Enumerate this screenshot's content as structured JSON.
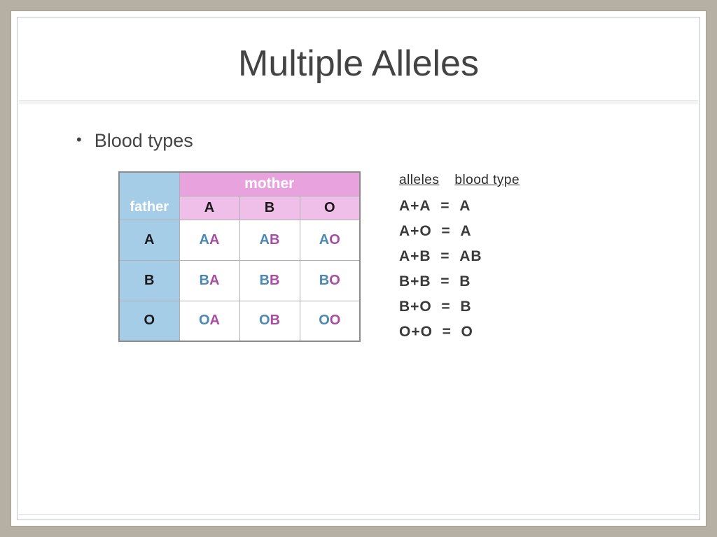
{
  "title": "Multiple Alleles",
  "bullet": "Blood types",
  "colors": {
    "page_bg": "#b5afa4",
    "slide_bg": "#ffffff",
    "inner_border": "#b8c5d8",
    "title_color": "#434343",
    "father_bg": "#a6cde8",
    "mother_header_bg": "#e8a2dd",
    "mother_sub_bg": "#efbfe9",
    "father_letter": "#4b88b2",
    "mother_letter": "#a84da2",
    "cell_border": "#b0b0b0",
    "table_border": "#8c8c8c",
    "text_dark": "#1a1a1a"
  },
  "punnett": {
    "father_label": "father",
    "mother_label": "mother",
    "mother_cols": [
      "A",
      "B",
      "O"
    ],
    "father_rows": [
      "A",
      "B",
      "O"
    ],
    "cells": [
      [
        [
          "A",
          "A"
        ],
        [
          "A",
          "B"
        ],
        [
          "A",
          "O"
        ]
      ],
      [
        [
          "B",
          "A"
        ],
        [
          "B",
          "B"
        ],
        [
          "B",
          "O"
        ]
      ],
      [
        [
          "O",
          "A"
        ],
        [
          "O",
          "B"
        ],
        [
          "O",
          "O"
        ]
      ]
    ]
  },
  "key": {
    "header_alleles": "alleles",
    "header_bloodtype": "blood type",
    "rows": [
      {
        "lhs": "A+A",
        "rhs": "A"
      },
      {
        "lhs": "A+O",
        "rhs": "A"
      },
      {
        "lhs": "A+B",
        "rhs": "AB"
      },
      {
        "lhs": "B+B",
        "rhs": "B"
      },
      {
        "lhs": "B+O",
        "rhs": "B"
      },
      {
        "lhs": "O+O",
        "rhs": "O"
      }
    ]
  },
  "typography": {
    "title_fontsize": 52,
    "bullet_fontsize": 27,
    "table_label_fontsize": 20,
    "key_fontsize": 21
  }
}
